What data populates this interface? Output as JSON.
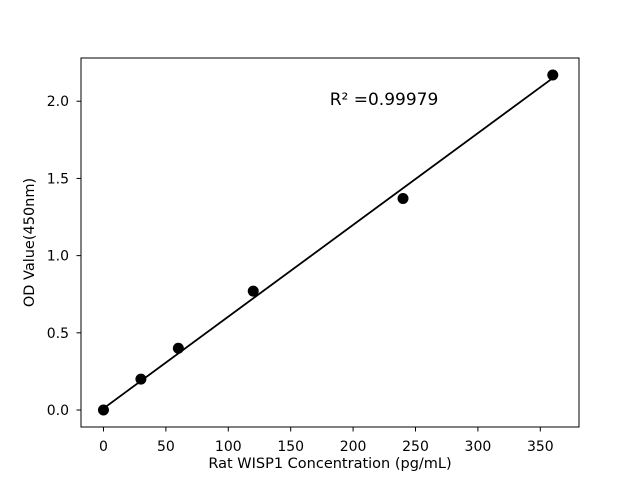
{
  "figure": {
    "background": "#ffffff"
  },
  "chart_data": {
    "type": "scatter",
    "title": "",
    "xlabel": "Rat WISP1 Concentration (pg/mL)",
    "ylabel": "OD Value(450nm)",
    "annotation": "R² =0.99979",
    "x": [
      0,
      30,
      60,
      120,
      240,
      360
    ],
    "y": [
      0.0,
      0.2,
      0.4,
      0.77,
      1.37,
      2.17
    ],
    "trendline": {
      "x": [
        0,
        360
      ],
      "y": [
        0.01,
        2.15
      ]
    },
    "xticks": [
      "0",
      "50",
      "100",
      "150",
      "200",
      "250",
      "300",
      "350"
    ],
    "yticks": [
      "0.0",
      "0.5",
      "1.0",
      "1.5",
      "2.0"
    ],
    "xlim": [
      -18,
      381
    ],
    "ylim": [
      -0.11,
      2.28
    ],
    "grid": false,
    "legend": false,
    "marker_color": "#000000",
    "line_color": "#000000",
    "axis_color": "#000000"
  }
}
